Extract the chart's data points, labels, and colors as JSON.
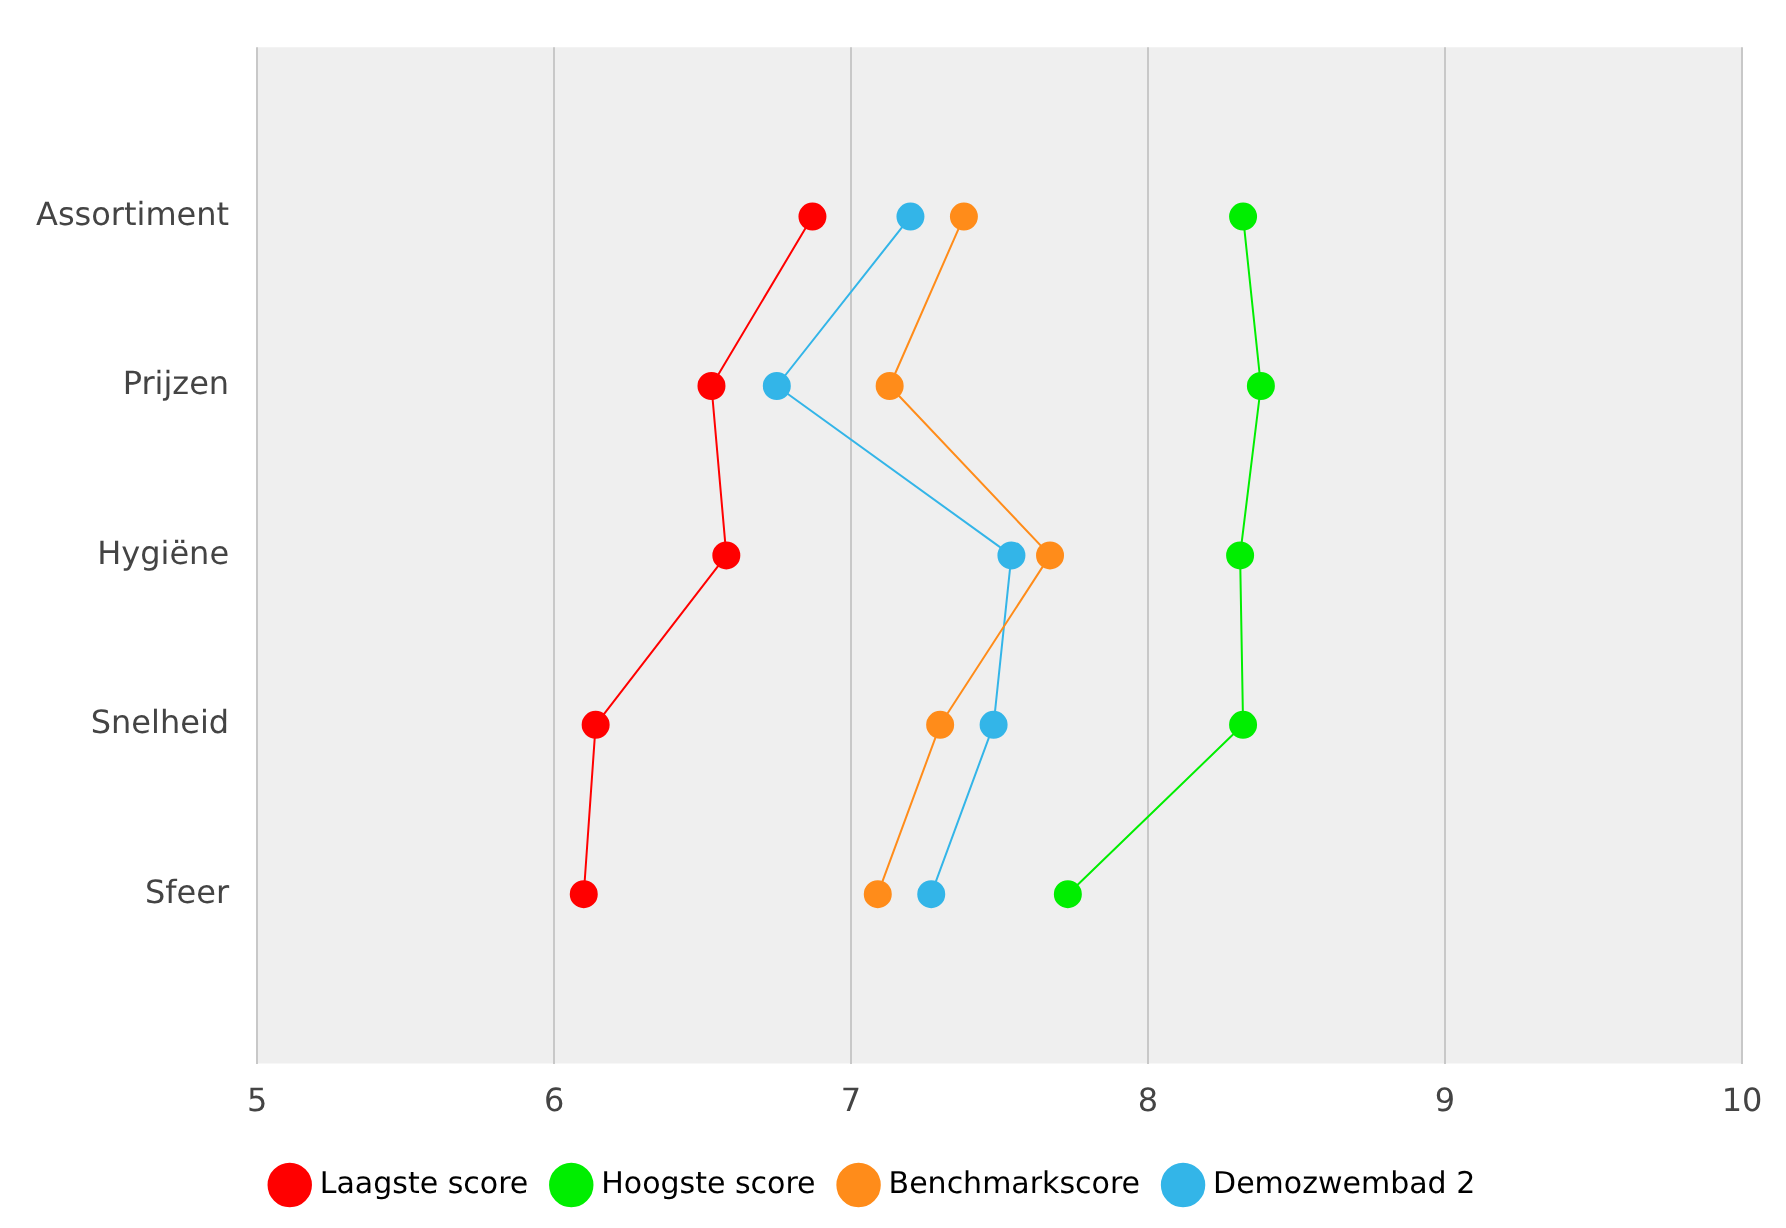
{
  "chart_data": {
    "type": "line",
    "orientation": "horizontal",
    "categories": [
      "Assortiment",
      "Prijzen",
      "Hygiëne",
      "Snelheid",
      "Sfeer"
    ],
    "series": [
      {
        "name": "Laagste score",
        "color": "#ff0000",
        "values": [
          6.87,
          6.53,
          6.58,
          6.14,
          6.1
        ]
      },
      {
        "name": "Hoogste score",
        "color": "#00ee00",
        "values": [
          8.32,
          8.38,
          8.31,
          8.32,
          7.73
        ]
      },
      {
        "name": "Benchmarkscore",
        "color": "#ff8c1a",
        "values": [
          7.38,
          7.13,
          7.67,
          7.3,
          7.09
        ]
      },
      {
        "name": "Demozwembad 2",
        "color": "#33b5e8",
        "values": [
          7.2,
          6.75,
          7.54,
          7.48,
          7.27
        ]
      }
    ],
    "xlim": [
      5,
      10
    ],
    "xticks": [
      5,
      6,
      7,
      8,
      9,
      10
    ],
    "grid": "x",
    "legend": "bottom",
    "marker": "circle",
    "line_style": "solid"
  }
}
